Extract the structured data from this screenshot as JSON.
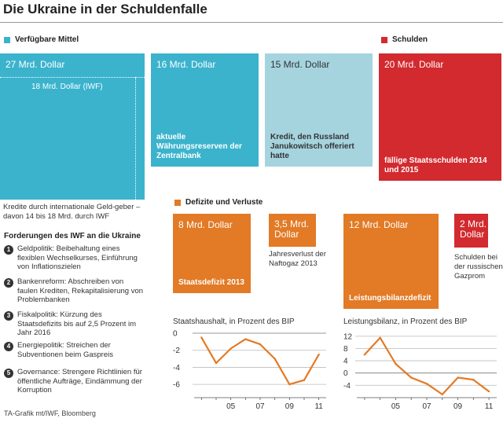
{
  "title": "Die Ukraine in der Schuldenfalle",
  "legend": {
    "available": "Verfügbare Mittel",
    "debts": "Schulden",
    "deficits": "Defizite und Verluste"
  },
  "colors": {
    "teal": "#3bb3cd",
    "light_blue": "#a5d4df",
    "red": "#d22a2e",
    "orange": "#e27a26"
  },
  "boxes": {
    "imf_credit": {
      "amount": "27 Mrd. Dollar",
      "inner": "18 Mrd. Dollar (IWF)",
      "note": "Kredite durch internationale Geld-geber – davon 14 bis 18 Mrd. durch IWF"
    },
    "reserves": {
      "amount": "16 Mrd. Dollar",
      "desc": "aktuelle Währungsreserven der Zentralbank"
    },
    "russia_credit": {
      "amount": "15 Mrd. Dollar",
      "desc": "Kredit, den Russland Janukowitsch offeriert hatte"
    },
    "gov_debt": {
      "amount": "20 Mrd. Dollar",
      "desc": "fällige Staatsschulden 2014 und 2015"
    },
    "state_deficit": {
      "amount": "8 Mrd. Dollar",
      "desc": "Staatsdefizit 2013"
    },
    "naftogaz": {
      "amount": "3,5 Mrd. Dollar",
      "note": "Jahresverlust der Naftogaz 2013"
    },
    "current_account": {
      "amount": "12 Mrd. Dollar",
      "desc": "Leistungsbilanzdefizit"
    },
    "gazprom": {
      "amount": "2 Mrd. Dollar",
      "note": "Schulden bei der russischen Gazprom"
    }
  },
  "demands": {
    "title": "Forderungen des IWF an die Ukraine",
    "items": [
      {
        "num": "1",
        "text": "Geldpolitik: Beibehaltung eines flexiblen Wechselkurses, Einführung von Inflationszielen"
      },
      {
        "num": "2",
        "text": "Bankenreform: Abschreiben von faulen Krediten, Rekapitalisierung von Problembanken"
      },
      {
        "num": "3",
        "text": "Fiskalpolitik: Kürzung des Staatsdefizits bis auf 2,5 Prozent im Jahr 2016"
      },
      {
        "num": "4",
        "text": "Energiepolitik: Streichen der Subventionen beim Gaspreis"
      },
      {
        "num": "5",
        "text": "Governance: Strengere Richtlinien für öffentliche Aufträge, Eindämmung der Korruption"
      }
    ]
  },
  "source": "TA-Grafik mt/IWF, Bloomberg",
  "chart_data": [
    {
      "type": "line",
      "title": "Staatshaushalt, in Prozent des BIP",
      "x": [
        2003,
        2004,
        2005,
        2006,
        2007,
        2008,
        2009,
        2010,
        2011
      ],
      "values": [
        -0.5,
        -3.5,
        -1.8,
        -0.7,
        -1.3,
        -3.0,
        -6.0,
        -5.5,
        -2.5
      ],
      "xlim": [
        2002.5,
        2011.5
      ],
      "ylim": [
        -7,
        0
      ],
      "yticks": [
        0,
        -2,
        -4,
        -6
      ],
      "ytick_labels": [
        "0",
        "-2",
        "-4",
        "-6"
      ],
      "xticks": [
        2005,
        2007,
        2009,
        2011
      ],
      "xtick_labels": [
        "05",
        "07",
        "09",
        "11"
      ],
      "color": "#e27a26"
    },
    {
      "type": "line",
      "title": "Leistungsbilanz, in Prozent des BIP",
      "x": [
        2003,
        2004,
        2005,
        2006,
        2007,
        2008,
        2009,
        2010,
        2011
      ],
      "values": [
        6,
        11.5,
        3,
        -1.5,
        -3.5,
        -7,
        -1.5,
        -2.2,
        -6
      ],
      "xlim": [
        2002.5,
        2011.5
      ],
      "ylim": [
        -6.5,
        13
      ],
      "yticks": [
        12,
        8,
        4,
        0,
        -4
      ],
      "ytick_labels": [
        "12",
        "8",
        "4",
        "0",
        "-4"
      ],
      "xticks": [
        2005,
        2007,
        2009,
        2011
      ],
      "xtick_labels": [
        "05",
        "07",
        "09",
        "11"
      ],
      "color": "#e27a26"
    }
  ]
}
